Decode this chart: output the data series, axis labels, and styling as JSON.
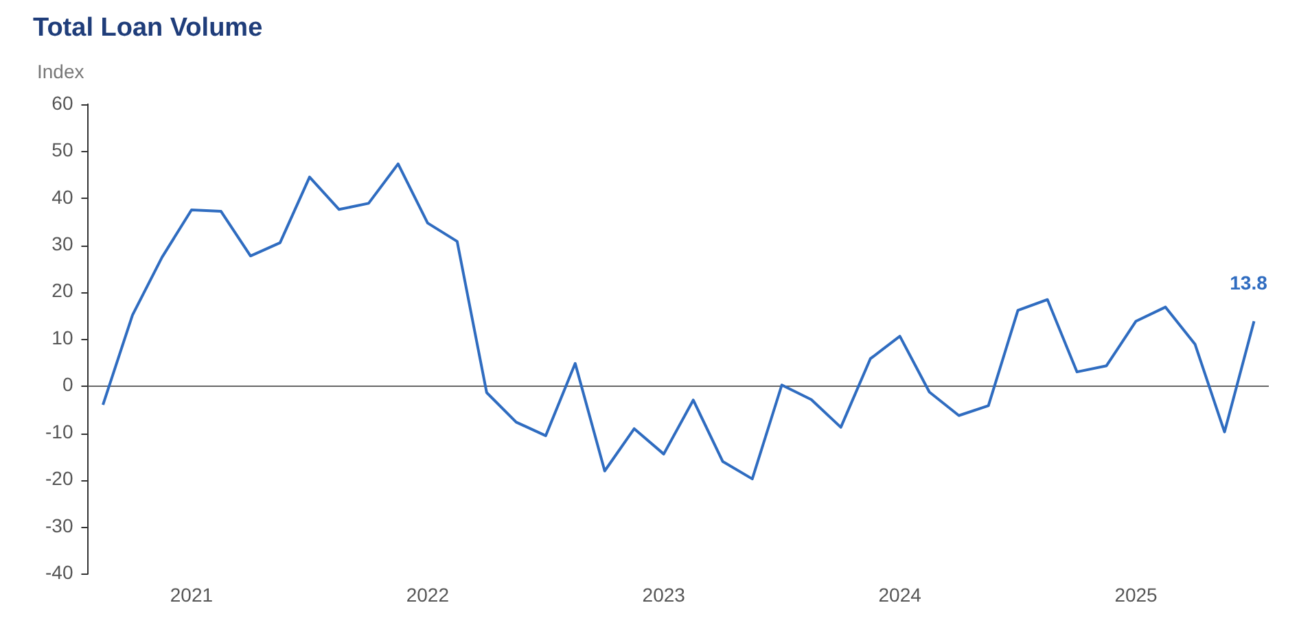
{
  "chart_data": {
    "type": "line",
    "title": "Total Loan Volume",
    "ylabel": "Index",
    "categories": [
      null,
      null,
      null,
      "2021",
      null,
      null,
      null,
      null,
      null,
      null,
      null,
      "2022",
      null,
      null,
      null,
      null,
      null,
      null,
      null,
      "2023",
      null,
      null,
      null,
      null,
      null,
      null,
      null,
      "2024",
      null,
      null,
      null,
      null,
      null,
      null,
      null,
      "2025",
      null,
      null,
      null,
      null
    ],
    "series": [
      {
        "color": "#2f6cc0",
        "values": [
          -4,
          15.1,
          27.4,
          37.5,
          37.2,
          27.7,
          30.5,
          44.5,
          37.6,
          38.9,
          47.3,
          34.7,
          30.8,
          -1.4,
          -7.7,
          -10.6,
          4.8,
          -18.1,
          -9.1,
          -14.5,
          -3.0,
          -16.1,
          -19.8,
          0.2,
          -2.9,
          -8.8,
          5.8,
          10.6,
          -1.3,
          -6.3,
          -4.2,
          16.1,
          18.4,
          3.0,
          4.3,
          13.8,
          16.8,
          8.9,
          -9.8,
          13.8
        ],
        "value_labels": [
          null,
          null,
          null,
          null,
          null,
          null,
          null,
          null,
          null,
          null,
          null,
          null,
          null,
          null,
          null,
          null,
          null,
          null,
          null,
          null,
          null,
          null,
          null,
          null,
          null,
          null,
          null,
          null,
          null,
          null,
          null,
          null,
          null,
          null,
          null,
          null,
          null,
          null,
          null,
          "13.8"
        ]
      }
    ],
    "ylim": [
      -40,
      60
    ],
    "yticks": [
      -40,
      -30,
      -20,
      -10,
      0,
      10,
      20,
      30,
      40,
      50,
      60
    ],
    "ref_lines": [
      {
        "axis": "y",
        "value": 0,
        "color": "#666666"
      }
    ],
    "grid": false,
    "legend": false,
    "marker": "none",
    "line_style": "solid"
  }
}
